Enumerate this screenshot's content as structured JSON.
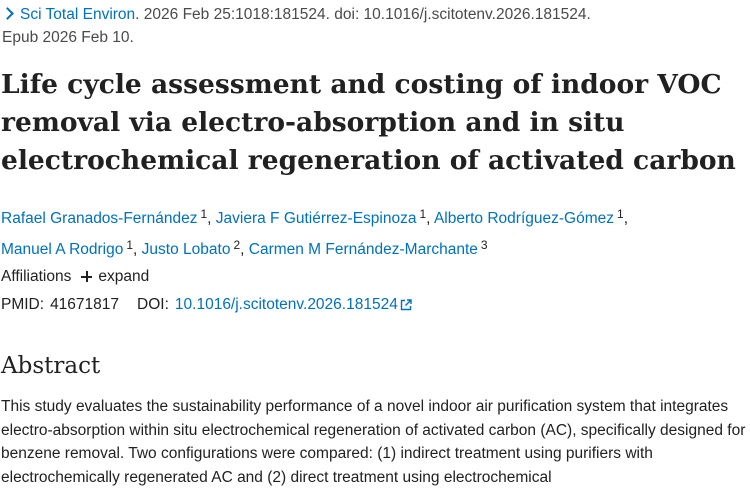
{
  "citation": {
    "journal": "Sci Total Environ",
    "details": ". 2026 Feb 25:1018:181524. doi: 10.1016/j.scitotenv.2026.181524.",
    "epub": "Epub 2026 Feb 10."
  },
  "title": "Life cycle assessment and costing of indoor VOC removal via electro-absorption and in situ electrochemical regeneration of activated carbon",
  "authors": [
    {
      "name": "Rafael Granados-Fernández",
      "aff": "1"
    },
    {
      "name": "Javiera F Gutiérrez-Espinoza",
      "aff": "1"
    },
    {
      "name": "Alberto Rodríguez-Gómez",
      "aff": "1"
    },
    {
      "name": "Manuel A Rodrigo",
      "aff": "1"
    },
    {
      "name": "Justo Lobato",
      "aff": "2"
    },
    {
      "name": "Carmen M Fernández-Marchante",
      "aff": "3"
    }
  ],
  "affiliations": {
    "label": "Affiliations",
    "expand_label": "expand"
  },
  "ids": {
    "pmid_label": "PMID:",
    "pmid": "41671817",
    "doi_label": "DOI:",
    "doi": "10.1016/j.scitotenv.2026.181524"
  },
  "abstract": {
    "heading": "Abstract",
    "text": "This study evaluates the sustainability performance of a novel indoor air purification system that integrates electro-absorption within situ electrochemical regeneration of activated carbon (AC), specifically designed for benzene removal. Two configurations were compared: (1) indirect treatment using purifiers with electrochemically regenerated AC and (2) direct treatment using electrochemical"
  },
  "colors": {
    "link": "#0071bc",
    "text": "#212121"
  }
}
